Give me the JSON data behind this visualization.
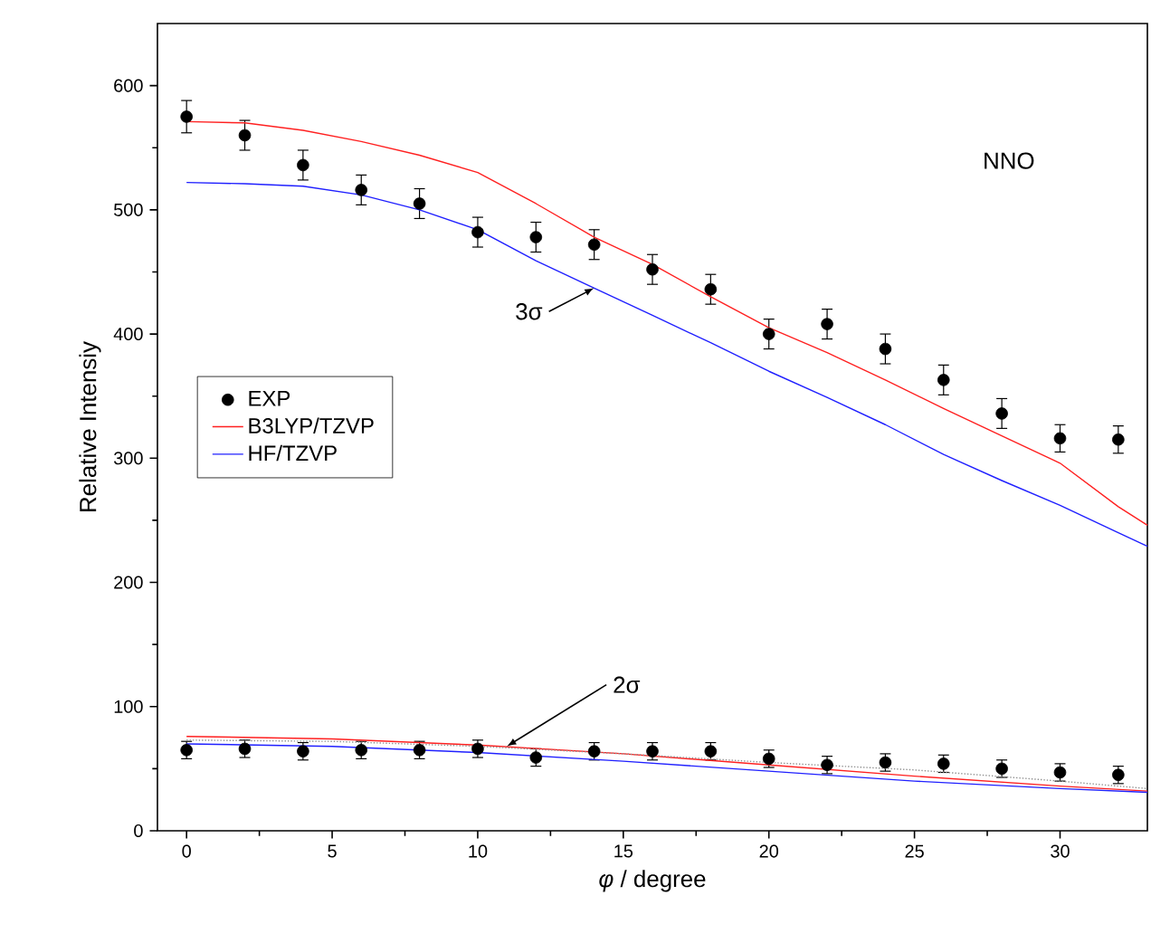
{
  "chart_data": {
    "type": "scatter",
    "xlabel": "*φ* / degree",
    "ylabel": "Relative Intensiy",
    "xlim": [
      -1,
      33
    ],
    "ylim": [
      0,
      650
    ],
    "xticks": [
      0,
      5,
      10,
      15,
      20,
      25,
      30
    ],
    "yticks": [
      0,
      100,
      200,
      300,
      400,
      500,
      600
    ],
    "legend": "left",
    "grid": false,
    "annotations": [
      "NNO",
      {
        "text": "3σ",
        "x": 14,
        "y": 437
      },
      {
        "text": "2σ",
        "x": 11,
        "y": 68
      }
    ],
    "series": [
      {
        "name": "EXP",
        "marker": "circle",
        "color": "#000000",
        "x": [
          0,
          2,
          4,
          6,
          8,
          10,
          12,
          14,
          16,
          18,
          20,
          22,
          24,
          26,
          28,
          30,
          32
        ],
        "values": [
          575,
          560,
          536,
          516,
          505,
          482,
          478,
          472,
          452,
          436,
          400,
          408,
          388,
          363,
          336,
          316,
          315
        ],
        "errors": [
          13,
          12,
          12,
          12,
          12,
          12,
          12,
          12,
          12,
          12,
          12,
          12,
          12,
          12,
          12,
          11,
          11
        ]
      },
      {
        "marker": "circle",
        "color": "#000000",
        "x": [
          0,
          2,
          4,
          6,
          8,
          10,
          12,
          14,
          16,
          18,
          20,
          22,
          24,
          26,
          28,
          30,
          32
        ],
        "values": [
          65,
          66,
          64,
          65,
          65,
          66,
          59,
          64,
          64,
          64,
          58,
          53,
          55,
          54,
          50,
          47,
          45
        ],
        "errors": [
          7,
          7,
          7,
          7,
          7,
          7,
          7,
          7,
          7,
          7,
          7,
          7,
          7,
          7,
          7,
          7,
          7
        ]
      },
      {
        "name": "B3LYP/TZVP",
        "type": "line",
        "marker": "none",
        "line_style": "solid",
        "color": "#ff2020",
        "x": [
          0,
          2,
          4,
          6,
          8,
          10,
          12,
          14,
          16,
          18,
          20,
          22,
          24,
          26,
          28,
          30,
          32,
          33
        ],
        "values": [
          571,
          570,
          564,
          555,
          544,
          530,
          505,
          478,
          456,
          430,
          405,
          385,
          363,
          340,
          318,
          296,
          261,
          246
        ]
      },
      {
        "type": "line",
        "marker": "none",
        "line_style": "solid",
        "color": "#ff2020",
        "x": [
          0,
          5,
          10,
          15,
          20,
          25,
          30,
          33
        ],
        "values": [
          76,
          74,
          69,
          62,
          53,
          44,
          36,
          32
        ]
      },
      {
        "name": "HF/TZVP",
        "type": "line",
        "marker": "none",
        "line_style": "solid",
        "color": "#2020ff",
        "x": [
          0,
          2,
          4,
          6,
          8,
          10,
          12,
          14,
          16,
          18,
          20,
          22,
          24,
          26,
          28,
          30,
          32,
          33
        ],
        "values": [
          522,
          521,
          519,
          512,
          500,
          484,
          459,
          437,
          415,
          393,
          370,
          349,
          327,
          303,
          282,
          262,
          240,
          229
        ]
      },
      {
        "type": "line",
        "marker": "none",
        "line_style": "solid",
        "color": "#2020ff",
        "x": [
          0,
          5,
          10,
          15,
          20,
          25,
          30,
          33
        ],
        "values": [
          70,
          68,
          63,
          56,
          48,
          40,
          34,
          31
        ]
      },
      {
        "type": "line",
        "marker": "none",
        "line_style": "dotted",
        "color": "#909090",
        "x": [
          0,
          5,
          10,
          15,
          20,
          25,
          30,
          33
        ],
        "values": [
          73,
          72,
          68,
          62,
          55,
          49,
          40,
          34
        ]
      }
    ]
  }
}
